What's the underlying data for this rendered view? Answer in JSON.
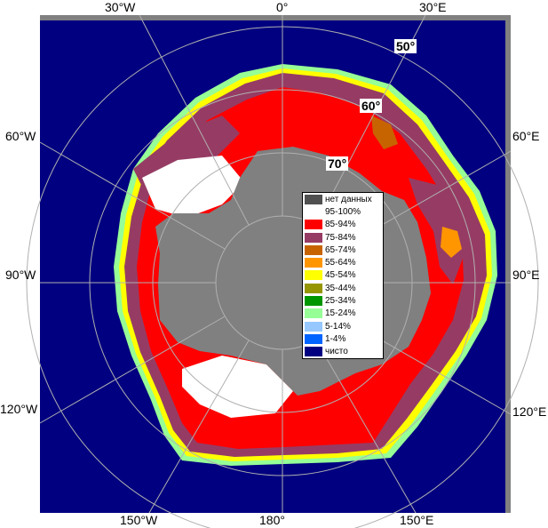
{
  "colors": {
    "ocean": "#000080",
    "land": "#808080",
    "frame": "#808080",
    "grid": "#b0b0b0"
  },
  "longitude_labels": {
    "top_30w": "30°W",
    "top_0": "0°",
    "top_30e": "30°E",
    "left_60w": "60°W",
    "right_60e": "60°E",
    "left_90w": "90°W",
    "right_90e": "90°E",
    "left_120w": "120°W",
    "right_120e": "120°E",
    "bottom_150w": "150°W",
    "bottom_180": "180°",
    "bottom_150e": "150°E"
  },
  "latitude_labels": {
    "lat50": "50°",
    "lat60": "60°",
    "lat70": "70°"
  },
  "legend": [
    {
      "label": "нет данных",
      "color": "#505050"
    },
    {
      "label": "95-100%",
      "color": "#ffffff"
    },
    {
      "label": "85-94%",
      "color": "#ff0000"
    },
    {
      "label": "75-84%",
      "color": "#963c64"
    },
    {
      "label": "65-74%",
      "color": "#c86400"
    },
    {
      "label": "55-64%",
      "color": "#ff9600"
    },
    {
      "label": "45-54%",
      "color": "#ffff00"
    },
    {
      "label": "35-44%",
      "color": "#969600"
    },
    {
      "label": "25-34%",
      "color": "#009600"
    },
    {
      "label": "15-24%",
      "color": "#96ff96"
    },
    {
      "label": "5-14%",
      "color": "#96c8ff"
    },
    {
      "label": "1-4%",
      "color": "#0064ff"
    },
    {
      "label": "чисто",
      "color": "#000080"
    }
  ]
}
